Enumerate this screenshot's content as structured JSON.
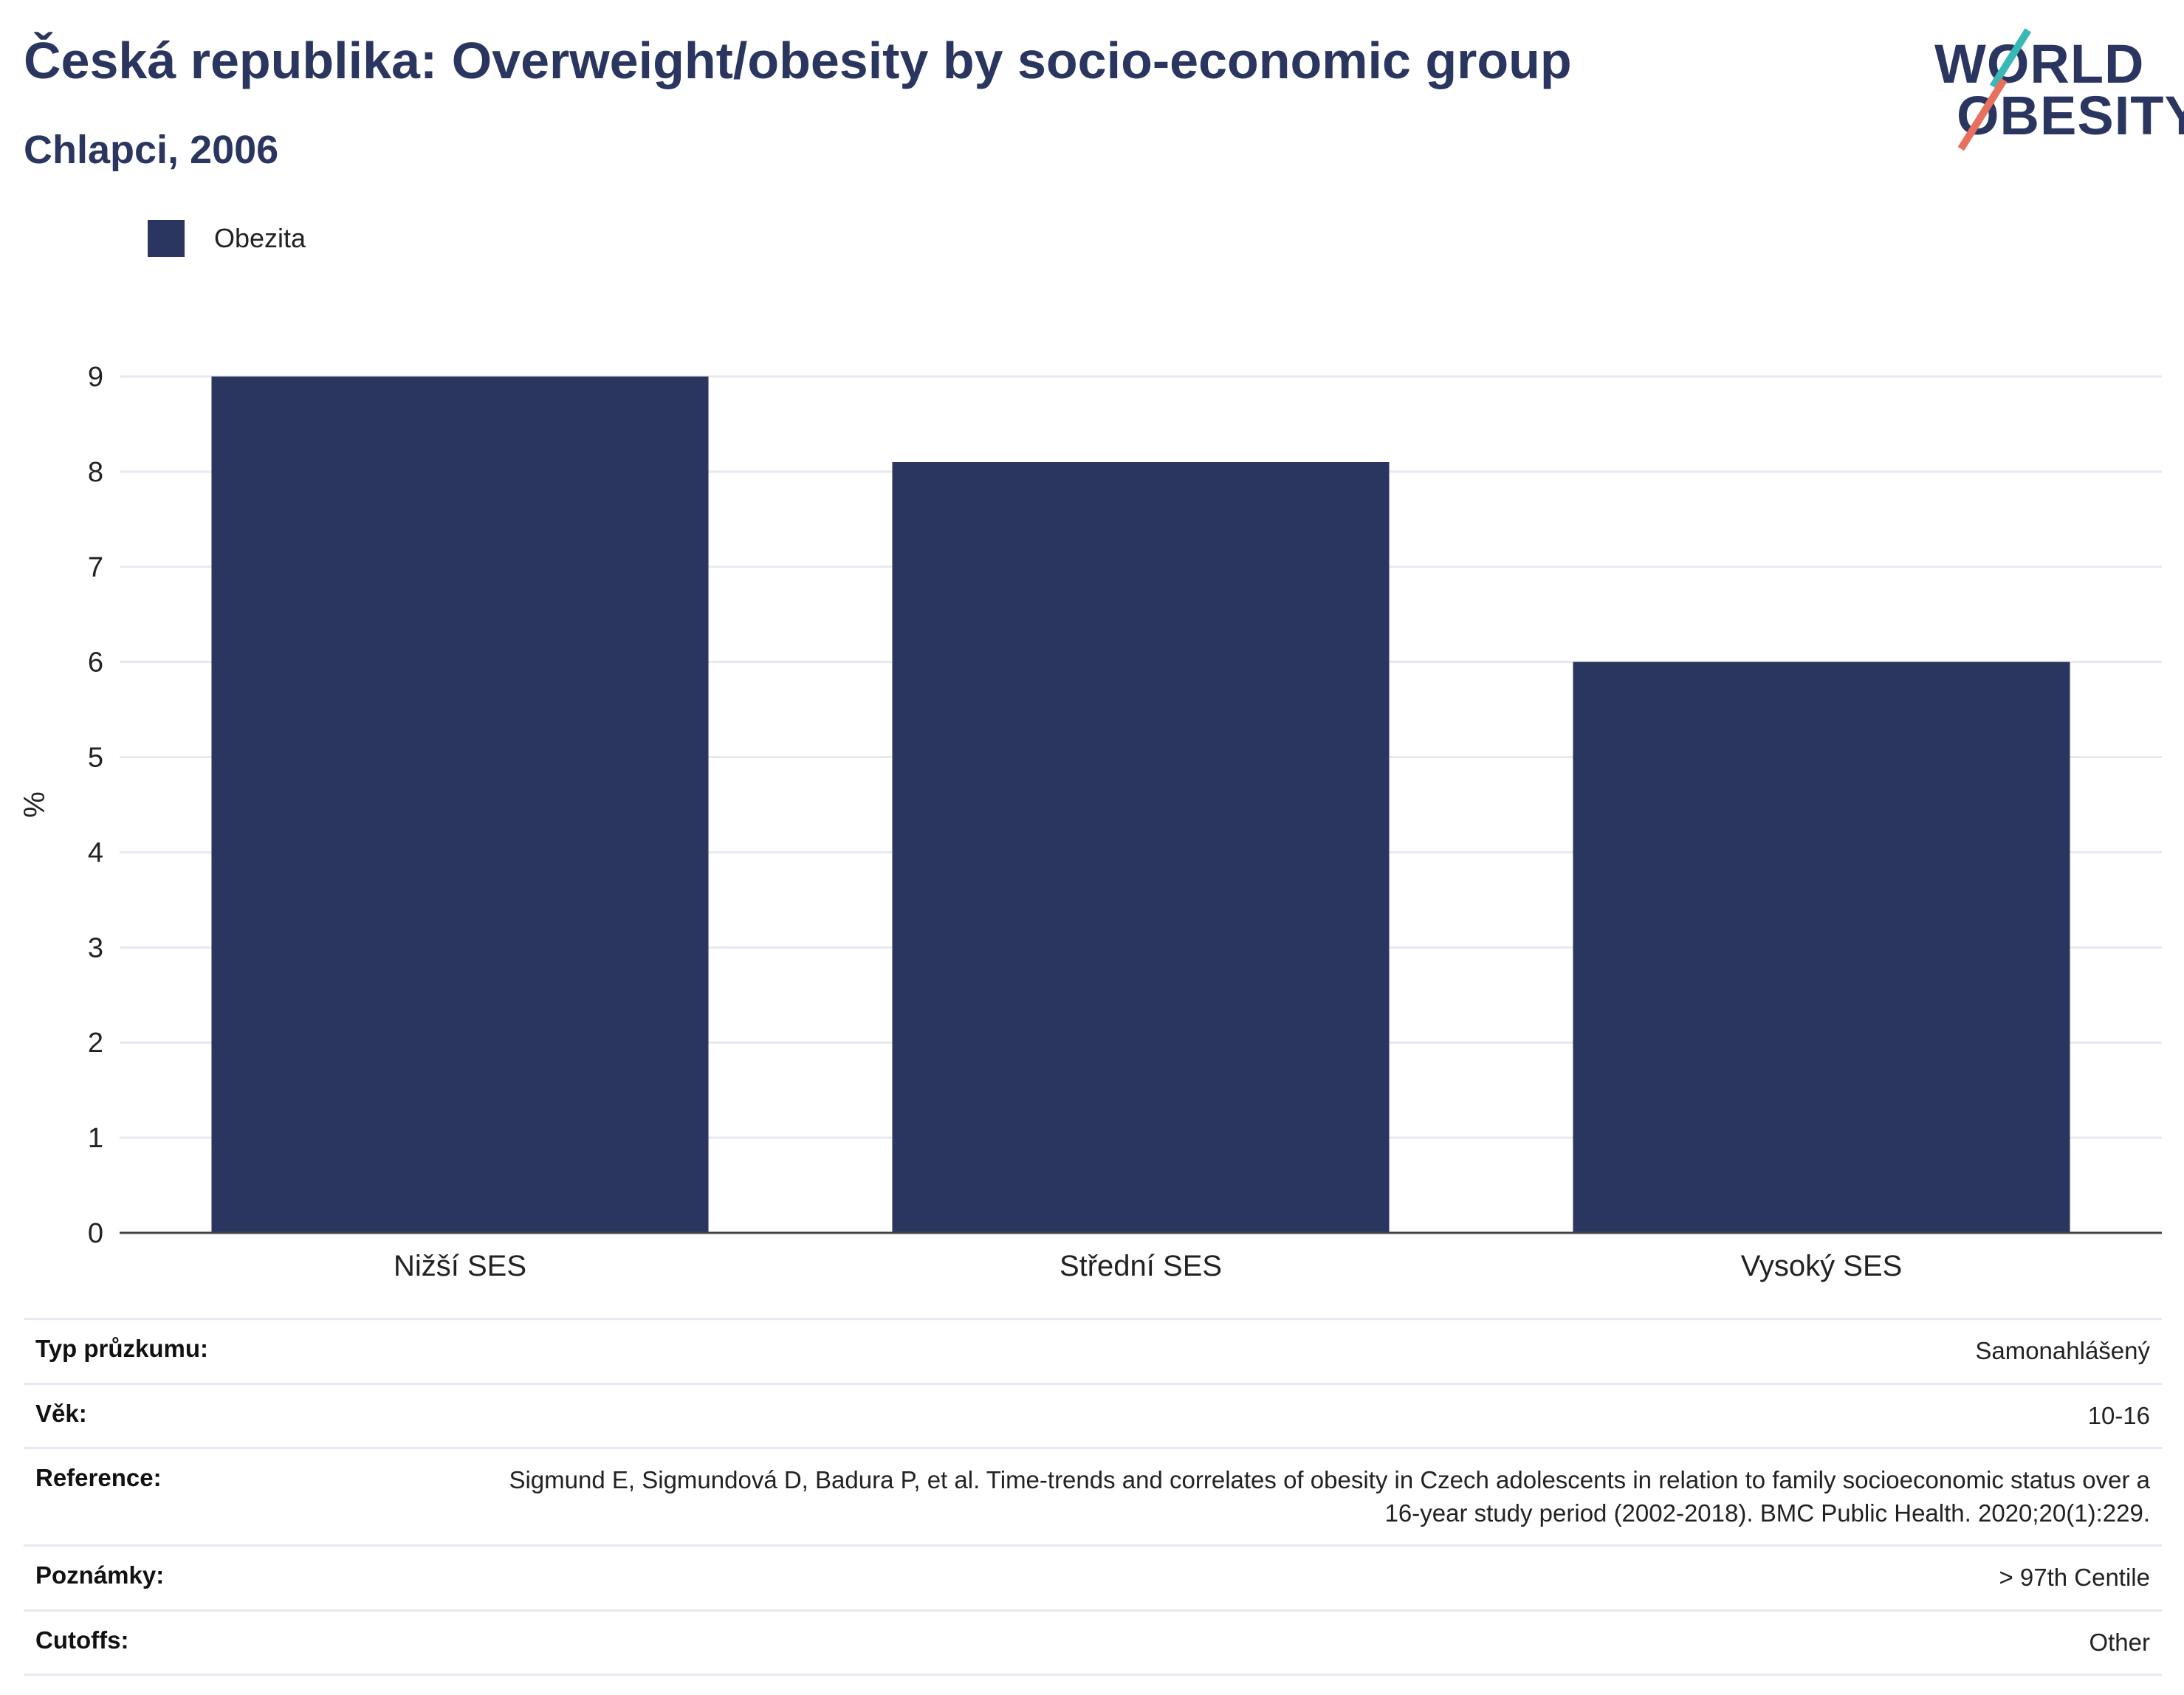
{
  "header": {
    "title": "Česká republika: Overweight/obesity by socio-economic group",
    "subtitle": "Chlapci, 2006"
  },
  "logo": {
    "line1": "WORLD",
    "line2": "OBESITY"
  },
  "colors": {
    "bar": "#2a365f",
    "text": "#2a365f",
    "grid": "#e6e9f1",
    "accent_teal": "#3ab8b6",
    "accent_coral": "#e8705f"
  },
  "chart_data": {
    "type": "bar",
    "categories": [
      "Nižší SES",
      "Střední SES",
      "Vysoký SES"
    ],
    "series": [
      {
        "name": "Obezita",
        "values": [
          9.0,
          8.1,
          6.0
        ]
      }
    ],
    "title": "Česká republika: Overweight/obesity by socio-economic group",
    "subtitle": "Chlapci, 2006",
    "xlabel": "",
    "ylabel": "%",
    "ylim": [
      0,
      9
    ],
    "yticks": [
      0,
      1,
      2,
      3,
      4,
      5,
      6,
      7,
      8,
      9
    ],
    "grid": true,
    "legend": "top-left"
  },
  "info": [
    {
      "key": "Typ průzkumu:",
      "value": "Samonahlášený"
    },
    {
      "key": "Věk:",
      "value": "10-16"
    },
    {
      "key": "Reference:",
      "value": "Sigmund E, Sigmundová D, Badura P, et al. Time-trends and correlates of obesity in Czech adolescents in relation to family socioeconomic status over a 16-year study period (2002-2018). BMC Public Health. 2020;20(1):229."
    },
    {
      "key": "Poznámky:",
      "value": "> 97th Centile"
    },
    {
      "key": "Cutoffs:",
      "value": "Other"
    }
  ]
}
